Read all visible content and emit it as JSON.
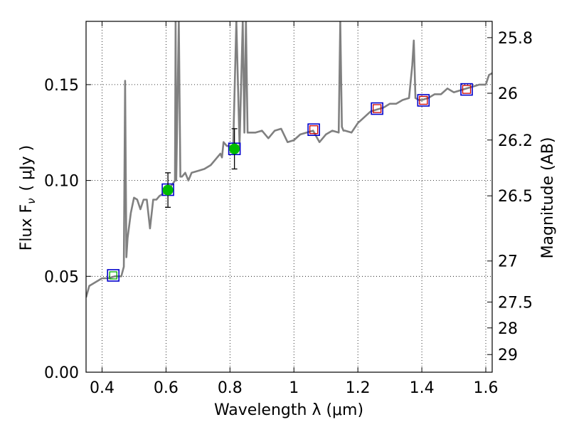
{
  "chart_data": {
    "type": "scatter",
    "title": "",
    "xlabel": "Wavelength  λ (μm)",
    "ylabel": "Flux  F",
    "ylabel_sub": "ν",
    "ylabel_unit": "( μJy )",
    "y2label": "Magnitude (AB)",
    "xlim": [
      0.35,
      1.62
    ],
    "ylim": [
      0.0,
      0.183
    ],
    "grid": true,
    "x_ticks": [
      0.4,
      0.6,
      0.8,
      1.0,
      1.2,
      1.4,
      1.6
    ],
    "x_tick_labels": [
      "0.4",
      "0.6",
      "0.8",
      "1",
      "1.2",
      "1.4",
      "1.6"
    ],
    "y_ticks": [
      0.0,
      0.05,
      0.1,
      0.15
    ],
    "y_tick_labels": [
      "0.00",
      "0.05",
      "0.10",
      "0.15"
    ],
    "y2_ticks": [
      {
        "label": "25.8",
        "flux": 0.1745
      },
      {
        "label": "26",
        "flux": 0.1455
      },
      {
        "label": "26.2",
        "flux": 0.1211
      },
      {
        "label": "26.5",
        "flux": 0.092
      },
      {
        "label": "27",
        "flux": 0.058
      },
      {
        "label": "27.5",
        "flux": 0.0366
      },
      {
        "label": "28",
        "flux": 0.0231
      },
      {
        "label": "29",
        "flux": 0.0092
      }
    ],
    "series": [
      {
        "kind": "model-spectrum",
        "color": "#808080",
        "x": [
          0.35,
          0.36,
          0.38,
          0.4,
          0.42,
          0.44,
          0.46,
          0.468,
          0.472,
          0.476,
          0.48,
          0.49,
          0.5,
          0.51,
          0.52,
          0.53,
          0.54,
          0.55,
          0.56,
          0.57,
          0.58,
          0.59,
          0.6,
          0.61,
          0.62,
          0.628,
          0.63,
          0.632,
          0.64,
          0.645,
          0.65,
          0.66,
          0.67,
          0.68,
          0.7,
          0.72,
          0.74,
          0.76,
          0.77,
          0.775,
          0.78,
          0.79,
          0.8,
          0.81,
          0.82,
          0.83,
          0.84,
          0.845,
          0.85,
          0.855,
          0.86,
          0.87,
          0.88,
          0.9,
          0.92,
          0.94,
          0.96,
          0.98,
          1.0,
          1.02,
          1.04,
          1.06,
          1.08,
          1.1,
          1.12,
          1.14,
          1.145,
          1.15,
          1.155,
          1.16,
          1.18,
          1.2,
          1.22,
          1.24,
          1.26,
          1.28,
          1.3,
          1.32,
          1.34,
          1.36,
          1.37,
          1.375,
          1.38,
          1.39,
          1.4,
          1.42,
          1.44,
          1.46,
          1.48,
          1.5,
          1.52,
          1.54,
          1.56,
          1.58,
          1.6,
          1.61,
          1.62
        ],
        "y": [
          0.039,
          0.045,
          0.047,
          0.049,
          0.049,
          0.05,
          0.05,
          0.055,
          0.152,
          0.06,
          0.07,
          0.083,
          0.091,
          0.09,
          0.085,
          0.09,
          0.09,
          0.075,
          0.09,
          0.09,
          0.092,
          0.093,
          0.095,
          0.096,
          0.098,
          0.1,
          0.183,
          0.1,
          0.183,
          0.102,
          0.102,
          0.104,
          0.1,
          0.104,
          0.105,
          0.106,
          0.108,
          0.112,
          0.114,
          0.112,
          0.12,
          0.118,
          0.118,
          0.117,
          0.183,
          0.118,
          0.183,
          0.125,
          0.183,
          0.125,
          0.125,
          0.125,
          0.125,
          0.126,
          0.122,
          0.126,
          0.127,
          0.12,
          0.121,
          0.124,
          0.125,
          0.126,
          0.12,
          0.124,
          0.126,
          0.125,
          0.183,
          0.128,
          0.126,
          0.126,
          0.125,
          0.13,
          0.133,
          0.136,
          0.137,
          0.138,
          0.14,
          0.14,
          0.142,
          0.143,
          0.16,
          0.173,
          0.143,
          0.142,
          0.142,
          0.143,
          0.145,
          0.145,
          0.148,
          0.146,
          0.147,
          0.148,
          0.149,
          0.15,
          0.15,
          0.155,
          0.156
        ]
      },
      {
        "kind": "model-bands",
        "marker": "square-open",
        "color": "#0000cc",
        "x": [
          0.435,
          0.606,
          0.814,
          1.062,
          1.26,
          1.405,
          1.54
        ],
        "y": [
          0.0505,
          0.0952,
          0.1165,
          0.1265,
          0.1375,
          0.1418,
          0.1475
        ]
      },
      {
        "kind": "observed",
        "marker": "circle-filled",
        "color": "#00bb00",
        "x": [
          0.606,
          0.814
        ],
        "y": [
          0.095,
          0.1165
        ],
        "yerr": [
          0.009,
          0.0105
        ]
      },
      {
        "kind": "upper-limit-open",
        "marker": "square-open-small",
        "color": "#cc0000",
        "x": [
          1.062,
          1.26,
          1.405,
          1.54
        ],
        "y": [
          0.1265,
          0.1375,
          0.1418,
          0.1475
        ]
      },
      {
        "kind": "green-open",
        "marker": "square-open-small",
        "color": "#00aa00",
        "x": [
          0.435
        ],
        "y": [
          0.0505
        ]
      }
    ]
  }
}
